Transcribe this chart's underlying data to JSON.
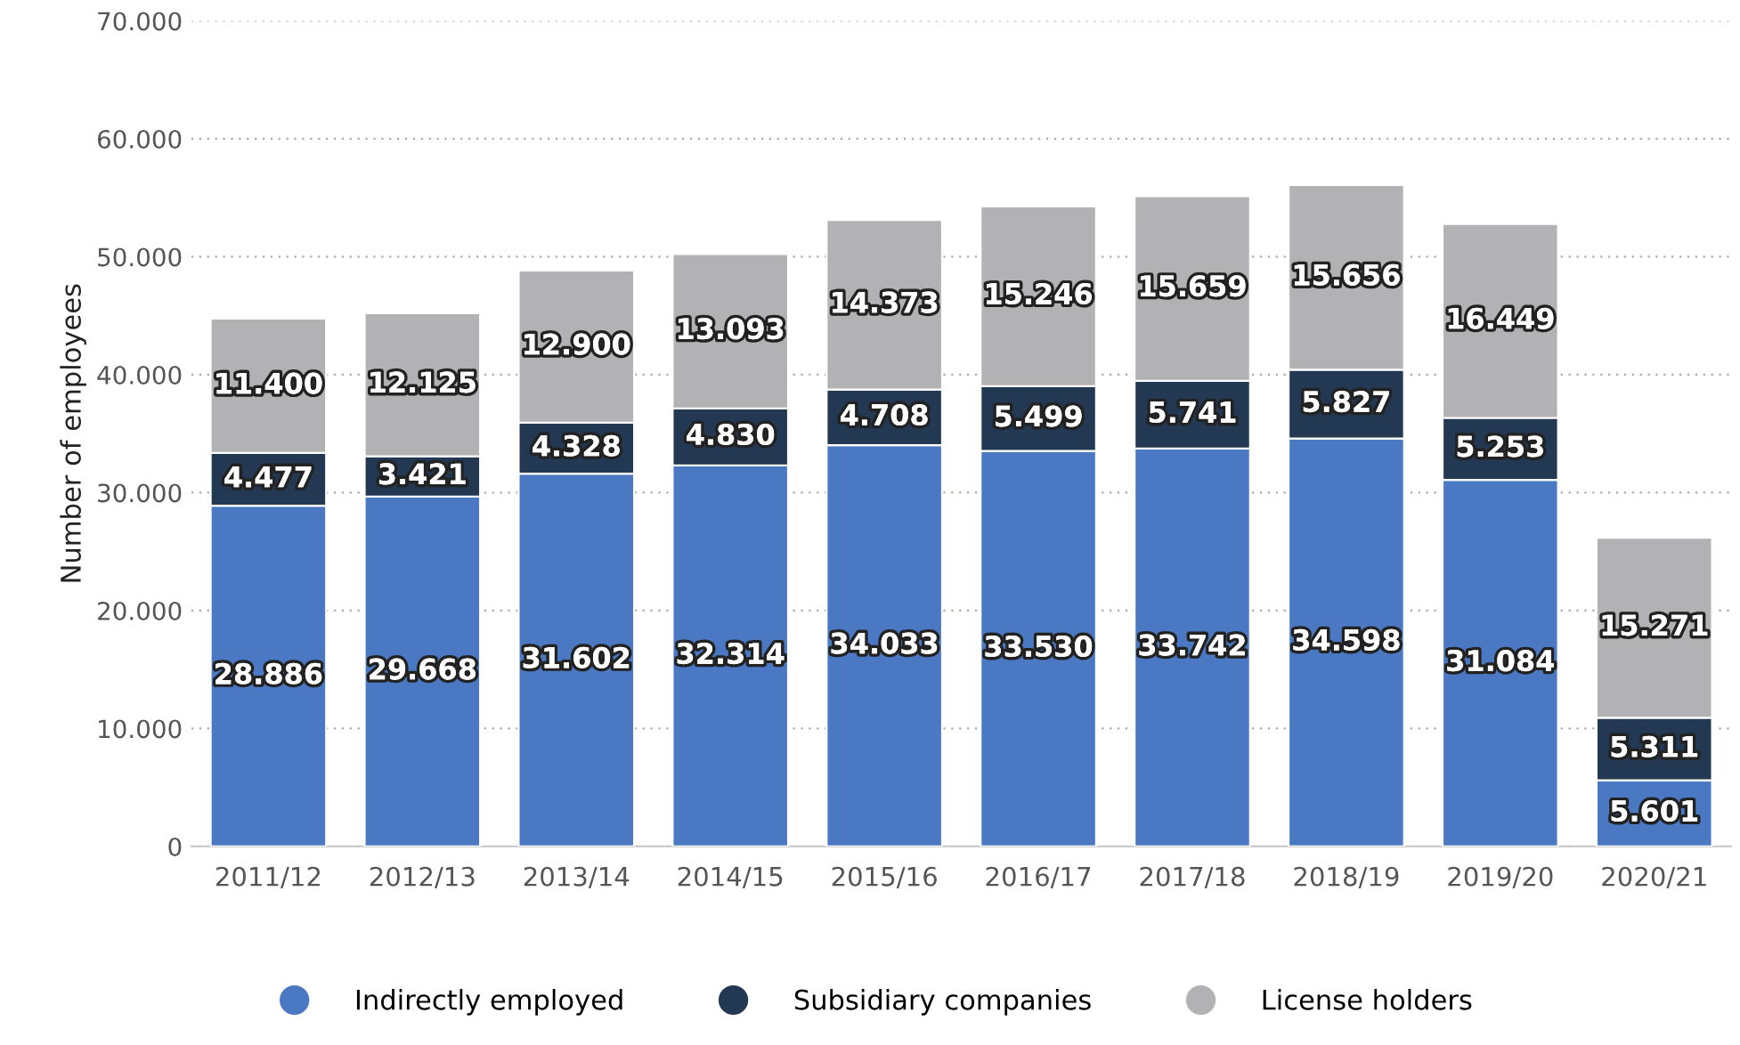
{
  "chart_data": {
    "type": "bar",
    "stacked": true,
    "ylabel": "Number of employees",
    "categories": [
      "2011/12",
      "2012/13",
      "2013/14",
      "2014/15",
      "2015/16",
      "2016/17",
      "2017/18",
      "2018/19",
      "2019/20",
      "2020/21"
    ],
    "series": [
      {
        "name": "Indirectly employed",
        "color": "#4a78c2",
        "values": [
          28886,
          29668,
          31602,
          32314,
          34033,
          33530,
          33742,
          34598,
          31084,
          5601
        ],
        "value_labels": [
          "28.886",
          "29.668",
          "31.602",
          "32.314",
          "34.033",
          "33.530",
          "33.742",
          "34.598",
          "31.084",
          "5.601"
        ]
      },
      {
        "name": "Subsidiary companies",
        "color": "#233852",
        "values": [
          4477,
          3421,
          4328,
          4830,
          4708,
          5499,
          5741,
          5827,
          5253,
          5311
        ],
        "value_labels": [
          "4.477",
          "3.421",
          "4.328",
          "4.830",
          "4.708",
          "5.499",
          "5.741",
          "5.827",
          "5.253",
          "5.311"
        ]
      },
      {
        "name": "License holders",
        "color": "#b2b2b4",
        "values": [
          11400,
          12125,
          12900,
          13093,
          14373,
          15246,
          15659,
          15656,
          16449,
          15271
        ],
        "value_labels": [
          "11.400",
          "12.125",
          "12.900",
          "13.093",
          "14.373",
          "15.246",
          "15.659",
          "15.656",
          "16.449",
          "15.271"
        ]
      }
    ],
    "ylim": [
      0,
      70000
    ],
    "yticks": [
      {
        "value": 0,
        "label": "0"
      },
      {
        "value": 10000,
        "label": "10.000"
      },
      {
        "value": 20000,
        "label": "20.000"
      },
      {
        "value": 30000,
        "label": "30.000"
      },
      {
        "value": 40000,
        "label": "40.000"
      },
      {
        "value": 50000,
        "label": "50.000"
      },
      {
        "value": 60000,
        "label": "60.000"
      },
      {
        "value": 70000,
        "label": "70.000"
      }
    ],
    "grid": "y",
    "legend": "bottom"
  }
}
